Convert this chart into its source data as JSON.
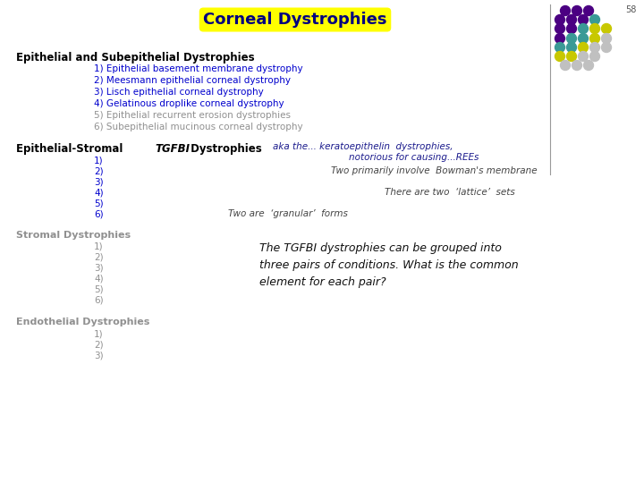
{
  "title": "Corneal Dystrophies",
  "title_bg": "#FFFF00",
  "title_color": "#000080",
  "slide_number": "58",
  "bg_color": "#FFFFFF",
  "section1_header": "Epithelial and Subepithelial Dystrophies",
  "section1_items_bold": [
    "1) Epithelial basement membrane dystrophy",
    "2) Meesmann epithelial corneal dystrophy",
    "3) Lisch epithelial corneal dystrophy",
    "4) Gelatinous droplike corneal dystrophy"
  ],
  "section1_items_faded": [
    "5) Epithelial recurrent erosion dystrophies",
    "6) Subepithelial mucinous corneal dystrophy"
  ],
  "section2_header_part1": "Epithelial-Stromal ",
  "section2_header_italic": "TGFBI",
  "section2_header_part2": " Dystrophies",
  "section2_items": [
    "1)",
    "2)",
    "3)",
    "4)",
    "5)",
    "6)"
  ],
  "section2_annotation1": "aka the... keratoepithelin  dystrophies,",
  "section2_annotation2": "notorious for causing...REEs",
  "section2_note1": "Two primarily involve  Bowman's membrane",
  "section2_note4": "There are two  ‘lattice’  sets",
  "section2_note6": "Two are  ‘granular’  forms",
  "section3_header": "Stromal Dystrophies",
  "section3_items": [
    "1)",
    "2)",
    "3)",
    "4)",
    "5)",
    "6)"
  ],
  "section3_text": "The TGFBI dystrophies can be grouped into\nthree pairs of conditions. What is the common\nelement for each pair?",
  "section4_header": "Endothelial Dystrophies",
  "section4_items": [
    "1)",
    "2)",
    "3)"
  ],
  "header_color": "#000000",
  "item_color_active": "#0000CD",
  "item_color_faded": "#909090",
  "annotation_color": "#1a1a8c",
  "note_color": "#444444"
}
